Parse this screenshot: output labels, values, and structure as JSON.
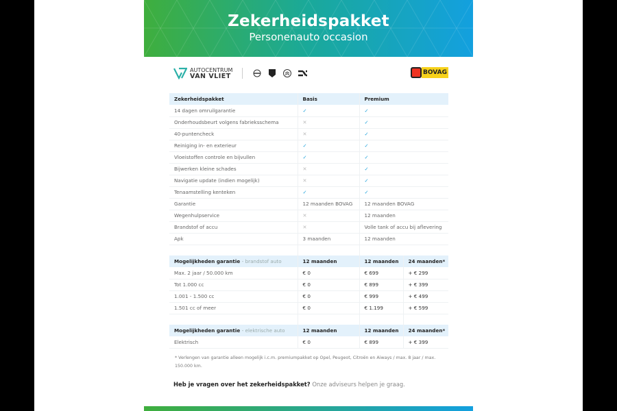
{
  "header": {
    "title": "Zekerheidspakket",
    "subtitle": "Personenauto occasion"
  },
  "brand": {
    "line1": "AUTOCENTRUM",
    "line2": "VAN VLIET",
    "partners": [
      "opel-logo",
      "peugeot-logo",
      "citroen-logo",
      "aiways-logo"
    ],
    "bovag": "BOVAG"
  },
  "colors": {
    "check": "#2aa7dd",
    "header_bg": "#e3f1fb",
    "gradient_start": "#3fae3d",
    "gradient_end": "#13a0df"
  },
  "package_table": {
    "headers": [
      "Zekerheidspakket",
      "Basis",
      "Premium"
    ],
    "rows": [
      [
        "14 dagen omruilgarantie",
        "✓",
        "✓"
      ],
      [
        "Onderhoudsbeurt volgens fabrieksschema",
        "✕",
        "✓"
      ],
      [
        "40-puntencheck",
        "✕",
        "✓"
      ],
      [
        "Reiniging in- en exterieur",
        "✓",
        "✓"
      ],
      [
        "Vloeistoffen controle en bijvullen",
        "✓",
        "✓"
      ],
      [
        "Bijwerken kleine schades",
        "✕",
        "✓"
      ],
      [
        "Navigatie update (indien mogelijk)",
        "✕",
        "✓"
      ],
      [
        "Tenaamstelling kenteken",
        "✓",
        "✓"
      ],
      [
        "Garantie",
        "12 maanden BOVAG",
        "12 maanden BOVAG"
      ],
      [
        "Wegenhulpservice",
        "✕",
        "12 maanden"
      ],
      [
        "Brandstof of accu",
        "✕",
        "Volle tank of accu bij aflevering"
      ],
      [
        "Apk",
        "3 maanden",
        "12 maanden"
      ]
    ]
  },
  "fuel_table": {
    "title": "Mogelijkheden garantie",
    "subtitle": "- brandstof auto",
    "headers": [
      "12 maanden",
      "12 maanden",
      "24 maanden*"
    ],
    "rows": [
      [
        "Max. 2 jaar / 50.000 km",
        "€ 0",
        "€ 699",
        "+ € 299"
      ],
      [
        "Tot 1.000 cc",
        "€ 0",
        "€ 899",
        "+ € 399"
      ],
      [
        "1.001 - 1.500 cc",
        "€ 0",
        "€ 999",
        "+ € 499"
      ],
      [
        "1.501 cc of meer",
        "€ 0",
        "€ 1.199",
        "+ € 599"
      ]
    ]
  },
  "electric_table": {
    "title": "Mogelijkheden garantie",
    "subtitle": "- elektrische auto",
    "headers": [
      "12 maanden",
      "12 maanden",
      "24 maanden*"
    ],
    "rows": [
      [
        "Elektrisch",
        "€ 0",
        "€ 899",
        "+ € 399"
      ]
    ]
  },
  "footnote": "* Verlengen van garantie alleen mogelijk i.c.m. premiumpakket op Opel, Peugeot, Citroën en Aiways / max. 8 jaar / max. 150.000 km.",
  "question": {
    "bold": "Heb je vragen over het zekerheidspakket?",
    "text": " Onze adviseurs helpen je graag."
  }
}
